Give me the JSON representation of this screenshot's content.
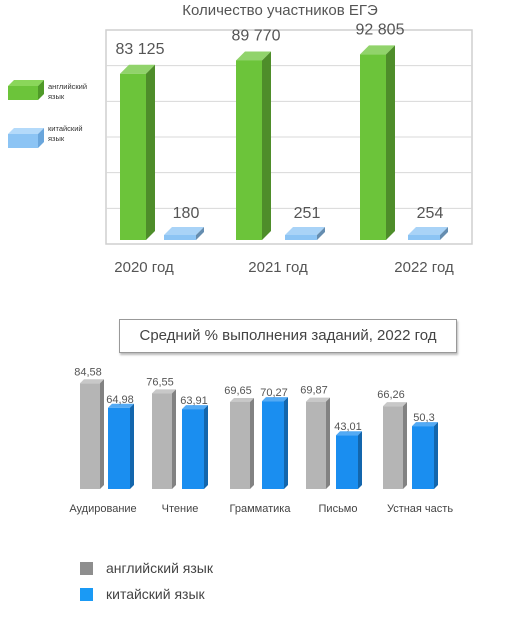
{
  "chart_data": [
    {
      "type": "bar",
      "title": "Количество участников ЕГЭ",
      "categories": [
        "2020 год",
        "2021 год",
        "2022 год"
      ],
      "series": [
        {
          "name": "английский язык",
          "values": [
            83125,
            89770,
            92805
          ],
          "labels": [
            "83 125",
            "89 770",
            "92 805"
          ],
          "color": "#6cc43a"
        },
        {
          "name": "китайский язык",
          "values": [
            180,
            251,
            254
          ],
          "labels": [
            "180",
            "251",
            "254"
          ],
          "color": "#8cc4f4"
        }
      ],
      "ylim": [
        0,
        100000
      ],
      "grid": true,
      "legend": "left"
    },
    {
      "type": "bar",
      "title": "Средний  % выполнения заданий, 2022 год",
      "categories": [
        "Аудирование",
        "Чтение",
        "Грамматика",
        "Письмо",
        "Устная часть"
      ],
      "series": [
        {
          "name": "английский язык",
          "values": [
            84.58,
            76.55,
            69.65,
            69.87,
            66.26
          ],
          "labels": [
            "84,58",
            "76,55",
            "69,65",
            "69,87",
            "66,26"
          ],
          "color": "#b5b5b5"
        },
        {
          "name": "китайский язык",
          "values": [
            64.98,
            63.91,
            70.27,
            43.01,
            50.3
          ],
          "labels": [
            "64,98",
            "63,91",
            "70,27",
            "43,01",
            "50,3"
          ],
          "color": "#1a8ef0"
        }
      ],
      "ylim": [
        0,
        100
      ],
      "grid": false,
      "legend": "bottom-left"
    }
  ],
  "legend1": {
    "english": "английский язык",
    "chinese": "китайский язык"
  },
  "legend2": {
    "english": "английский язык",
    "chinese": "китайский язык"
  }
}
